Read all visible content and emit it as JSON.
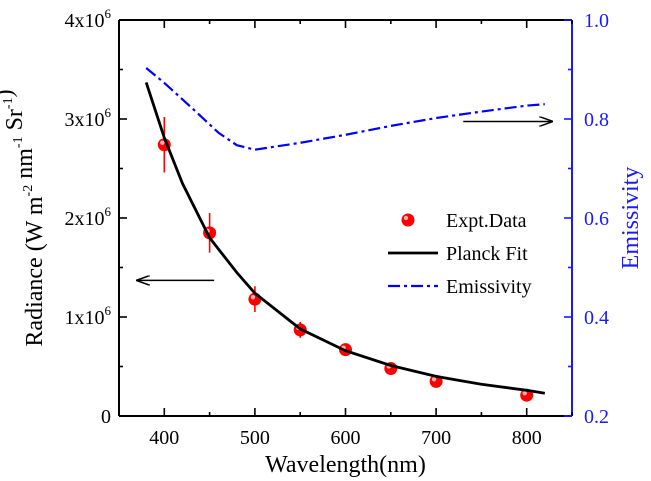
{
  "chart_data": {
    "type": "scatter",
    "xlabel": "Wavelength(nm)",
    "ylabel": "Radiance (W m-2 nm-1 Sr-1)",
    "ylabel_parts": [
      {
        "t": "Radiance (W m",
        "sup": false
      },
      {
        "t": "-2",
        "sup": true
      },
      {
        "t": " nm",
        "sup": false
      },
      {
        "t": "-1",
        "sup": true
      },
      {
        "t": " Sr",
        "sup": false
      },
      {
        "t": "-1",
        "sup": true
      },
      {
        "t": ")",
        "sup": false
      }
    ],
    "y2label": "Emissivity",
    "xlim": [
      350,
      850
    ],
    "ylim": [
      0,
      4000000
    ],
    "y2lim": [
      0.2,
      1.0
    ],
    "xticks": [
      400,
      500,
      600,
      700,
      800
    ],
    "yticks": [
      {
        "value": 0,
        "base": "0",
        "exp": ""
      },
      {
        "value": 1000000,
        "base": "1x10",
        "exp": "6"
      },
      {
        "value": 2000000,
        "base": "2x10",
        "exp": "6"
      },
      {
        "value": 3000000,
        "base": "3x10",
        "exp": "6"
      },
      {
        "value": 4000000,
        "base": "4x10",
        "exp": "6"
      }
    ],
    "y2ticks": [
      "0.2",
      "0.4",
      "0.6",
      "0.8",
      "1.0"
    ],
    "grid": false,
    "legend_position": "center-right",
    "legend": [
      "Expt.Data",
      "Planck Fit",
      "Emissivity"
    ],
    "series": [
      {
        "name": "Expt.Data",
        "kind": "scatter",
        "axis": "left",
        "color": "#ff0000",
        "x": [
          400,
          450,
          500,
          550,
          600,
          650,
          700,
          800
        ],
        "y": [
          2740000,
          1850000,
          1180000,
          870000,
          670000,
          480000,
          350000,
          210000
        ],
        "yerr": [
          280000,
          200000,
          130000,
          80000,
          50000,
          40000,
          30000,
          20000
        ]
      },
      {
        "name": "Planck Fit",
        "kind": "line",
        "axis": "left",
        "color": "#000000",
        "x": [
          380,
          400,
          420,
          450,
          480,
          500,
          550,
          600,
          650,
          700,
          750,
          800,
          820
        ],
        "y": [
          3370000,
          2810000,
          2350000,
          1800000,
          1450000,
          1240000,
          880000,
          660000,
          510000,
          400000,
          320000,
          260000,
          230000
        ]
      },
      {
        "name": "Emissivity",
        "kind": "line",
        "axis": "right",
        "color": "#0000ff",
        "x": [
          380,
          400,
          430,
          460,
          480,
          500,
          550,
          600,
          650,
          700,
          750,
          800,
          820
        ],
        "y": [
          0.903,
          0.873,
          0.823,
          0.772,
          0.747,
          0.738,
          0.752,
          0.768,
          0.786,
          0.802,
          0.815,
          0.827,
          0.83
        ]
      }
    ],
    "annotations": [
      {
        "type": "arrow",
        "points_to": "left-axis",
        "x_from": 455,
        "x_to": 370,
        "y": 1370000
      },
      {
        "type": "arrow",
        "points_to": "right-axis",
        "x_from": 730,
        "x_to": 828,
        "y2": 0.795
      }
    ]
  }
}
